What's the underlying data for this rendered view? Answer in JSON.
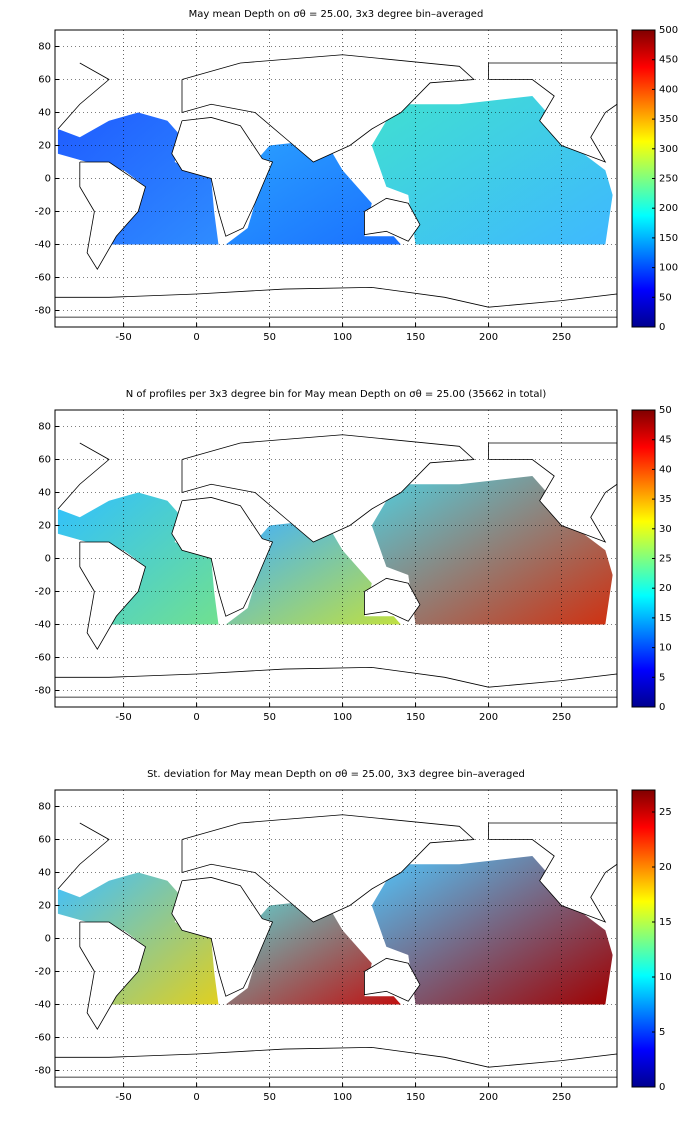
{
  "chart_data": [
    {
      "type": "heatmap",
      "title": "May mean Depth on σθ = 25.00, 3x3 degree bin–averaged",
      "xlim": [
        -97,
        288
      ],
      "xticks": [
        -50,
        0,
        50,
        100,
        150,
        200,
        250
      ],
      "ylim": [
        -90,
        90
      ],
      "yticks": [
        -80,
        -60,
        -40,
        -20,
        0,
        20,
        40,
        60,
        80
      ],
      "grid": true,
      "colormap": "jet",
      "clim": [
        0,
        500
      ],
      "cticks": [
        0,
        50,
        100,
        150,
        200,
        250,
        300,
        350,
        400,
        450,
        500
      ]
    },
    {
      "type": "heatmap",
      "title": "N of profiles per 3x3 degree bin for May mean Depth on σθ = 25.00 (35662 in total)",
      "xlim": [
        -97,
        288
      ],
      "xticks": [
        -50,
        0,
        50,
        100,
        150,
        200,
        250
      ],
      "ylim": [
        -90,
        90
      ],
      "yticks": [
        -80,
        -60,
        -40,
        -20,
        0,
        20,
        40,
        60,
        80
      ],
      "grid": true,
      "colormap": "jet",
      "clim": [
        0,
        50
      ],
      "cticks": [
        0,
        5,
        10,
        15,
        20,
        25,
        30,
        35,
        40,
        45,
        50
      ]
    },
    {
      "type": "heatmap",
      "title": "St. deviation for May mean Depth on σθ = 25.00, 3x3 degree bin–averaged",
      "xlim": [
        -97,
        288
      ],
      "xticks": [
        -50,
        0,
        50,
        100,
        150,
        200,
        250
      ],
      "ylim": [
        -90,
        90
      ],
      "yticks": [
        -80,
        -60,
        -40,
        -20,
        0,
        20,
        40,
        60,
        80
      ],
      "grid": true,
      "colormap": "jet",
      "clim": [
        0,
        27
      ],
      "cticks": [
        0,
        5,
        10,
        15,
        20,
        25
      ]
    }
  ]
}
